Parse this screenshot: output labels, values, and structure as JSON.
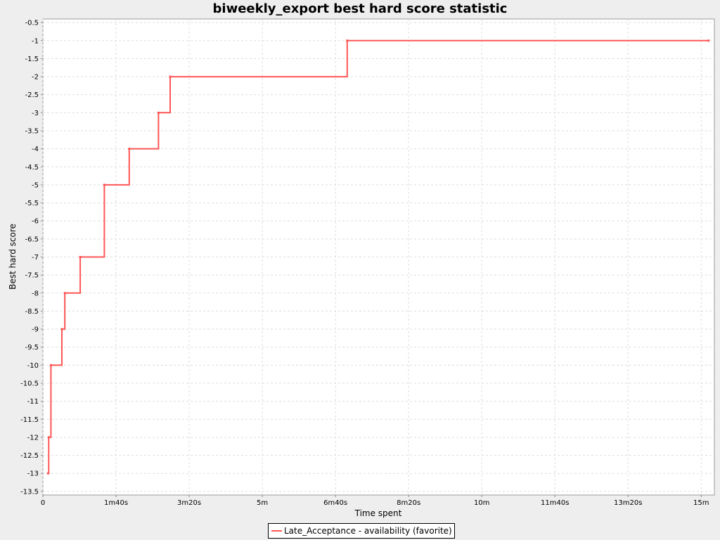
{
  "chart_data": {
    "type": "line",
    "title": "biweekly_export best hard score statistic",
    "xlabel": "Time spent",
    "ylabel": "Best hard score",
    "x_unit": "seconds",
    "xlim": [
      0,
      918
    ],
    "ylim": [
      -13.6,
      -0.4
    ],
    "grid": true,
    "legend_position": "bottom-center",
    "x_ticks": [
      {
        "value": 0,
        "label": "0"
      },
      {
        "value": 100,
        "label": "1m40s"
      },
      {
        "value": 200,
        "label": "3m20s"
      },
      {
        "value": 300,
        "label": "5m"
      },
      {
        "value": 400,
        "label": "6m40s"
      },
      {
        "value": 500,
        "label": "8m20s"
      },
      {
        "value": 600,
        "label": "10m"
      },
      {
        "value": 700,
        "label": "11m40s"
      },
      {
        "value": 800,
        "label": "13m20s"
      },
      {
        "value": 900,
        "label": "15m"
      }
    ],
    "y_ticks": [
      -0.5,
      -1,
      -1.5,
      -2,
      -2.5,
      -3,
      -3.5,
      -4,
      -4.5,
      -5,
      -5.5,
      -6,
      -6.5,
      -7,
      -7.5,
      -8,
      -8.5,
      -9,
      -9.5,
      -10,
      -10.5,
      -11,
      -11.5,
      -12,
      -12.5,
      -13,
      -13.5
    ],
    "series": [
      {
        "name": "Late_Acceptance - availability (favorite)",
        "color": "#ff5555",
        "step": true,
        "points": [
          [
            7,
            -13
          ],
          [
            8,
            -12
          ],
          [
            11,
            -10
          ],
          [
            26,
            -9
          ],
          [
            30,
            -8
          ],
          [
            51,
            -7
          ],
          [
            84,
            -5
          ],
          [
            118,
            -4
          ],
          [
            158,
            -3
          ],
          [
            174,
            -2
          ],
          [
            416,
            -1
          ],
          [
            910,
            -1
          ]
        ]
      }
    ]
  }
}
